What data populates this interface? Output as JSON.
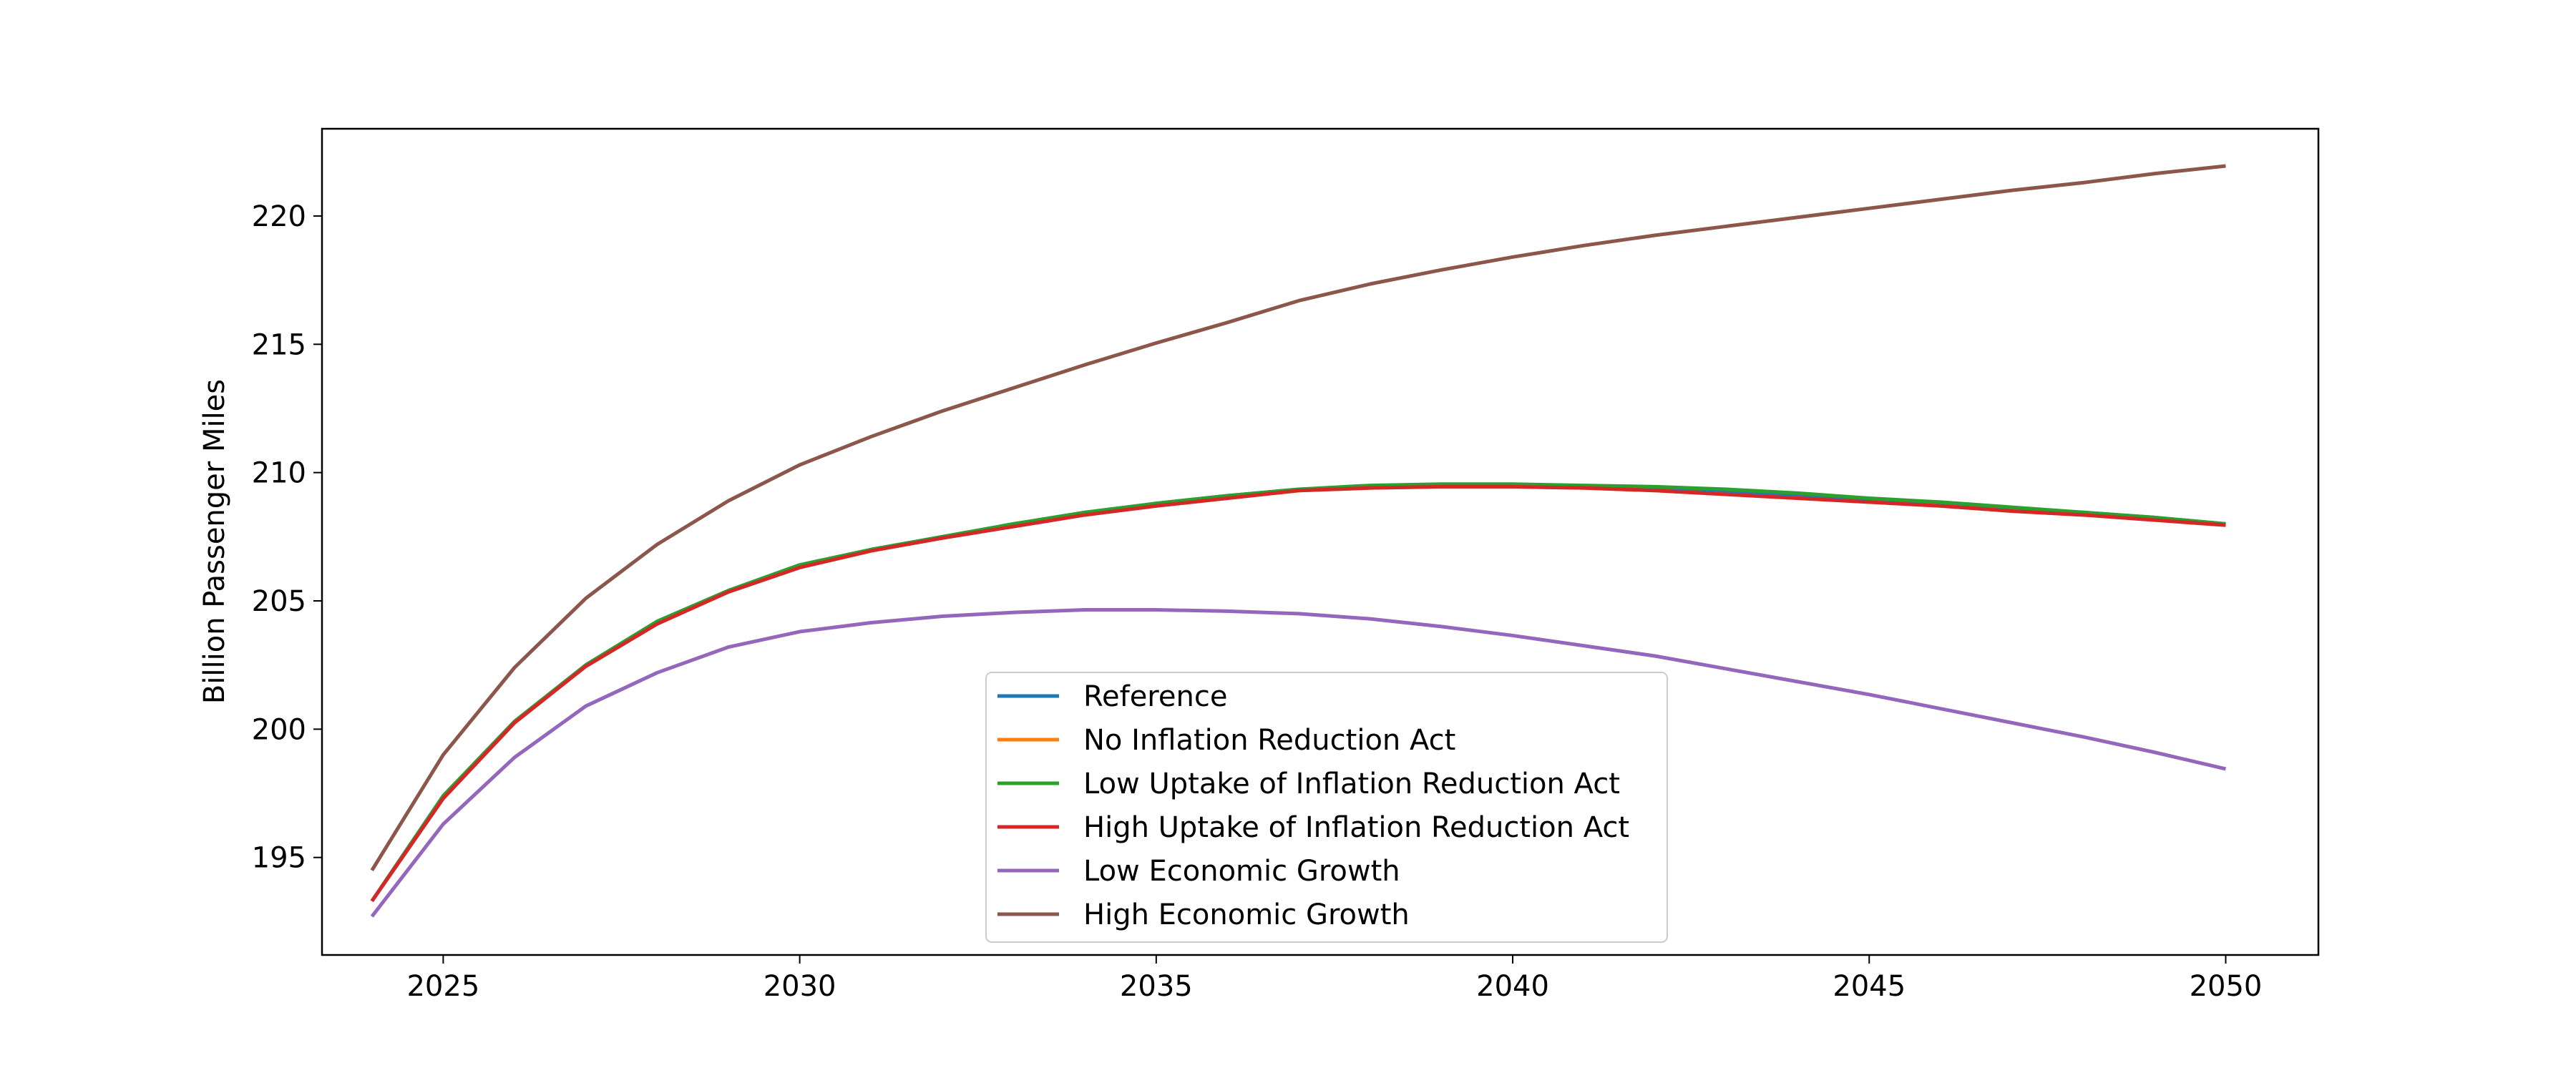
{
  "chart_data": {
    "type": "line",
    "title": "",
    "xlabel": "",
    "ylabel": "Billion Passenger Miles",
    "xlim": [
      2023.3,
      2051.3
    ],
    "ylim": [
      191.2,
      223.4
    ],
    "xticks": [
      2025,
      2030,
      2035,
      2040,
      2045,
      2050
    ],
    "yticks": [
      195,
      200,
      205,
      210,
      215,
      220
    ],
    "grid": false,
    "legend_position": "lower center",
    "x": [
      2024,
      2025,
      2026,
      2027,
      2028,
      2029,
      2030,
      2031,
      2032,
      2033,
      2034,
      2035,
      2036,
      2037,
      2038,
      2039,
      2040,
      2041,
      2042,
      2043,
      2044,
      2045,
      2046,
      2047,
      2048,
      2049,
      2050
    ],
    "series": [
      {
        "name": "Reference",
        "color": "#1f77b4",
        "values": [
          193.3,
          197.4,
          200.3,
          202.5,
          204.2,
          205.4,
          206.4,
          207.0,
          207.5,
          208.0,
          208.4,
          208.8,
          209.1,
          209.35,
          209.45,
          209.5,
          209.5,
          209.45,
          209.4,
          209.25,
          209.1,
          208.95,
          208.8,
          208.6,
          208.45,
          208.25,
          208.0
        ]
      },
      {
        "name": "No Inflation Reduction Act",
        "color": "#ff7f0e",
        "values": [
          193.3,
          197.3,
          200.25,
          202.45,
          204.1,
          205.35,
          206.3,
          206.95,
          207.45,
          207.9,
          208.35,
          208.7,
          209.0,
          209.3,
          209.4,
          209.45,
          209.45,
          209.4,
          209.3,
          209.15,
          209.0,
          208.85,
          208.7,
          208.5,
          208.35,
          208.15,
          207.95
        ]
      },
      {
        "name": "Low Uptake of Inflation Reduction Act",
        "color": "#2ca02c",
        "values": [
          193.3,
          197.4,
          200.3,
          202.5,
          204.2,
          205.4,
          206.4,
          207.0,
          207.5,
          208.0,
          208.45,
          208.8,
          209.1,
          209.35,
          209.5,
          209.55,
          209.55,
          209.5,
          209.45,
          209.35,
          209.2,
          209.0,
          208.85,
          208.65,
          208.45,
          208.25,
          208.0
        ]
      },
      {
        "name": "High Uptake of Inflation Reduction Act",
        "color": "#d62728",
        "values": [
          193.3,
          197.3,
          200.25,
          202.45,
          204.1,
          205.35,
          206.3,
          206.95,
          207.45,
          207.9,
          208.35,
          208.7,
          209.0,
          209.3,
          209.4,
          209.45,
          209.45,
          209.4,
          209.3,
          209.15,
          209.0,
          208.85,
          208.7,
          208.5,
          208.35,
          208.15,
          207.95
        ]
      },
      {
        "name": "Low Economic Growth",
        "color": "#9467bd",
        "values": [
          192.7,
          196.3,
          198.9,
          200.9,
          202.2,
          203.2,
          203.8,
          204.15,
          204.4,
          204.55,
          204.65,
          204.65,
          204.6,
          204.5,
          204.3,
          204.0,
          203.65,
          203.25,
          202.85,
          202.35,
          201.85,
          201.35,
          200.8,
          200.25,
          199.7,
          199.1,
          198.45
        ]
      },
      {
        "name": "High Economic Growth",
        "color": "#8c564b",
        "values": [
          194.5,
          199.0,
          202.4,
          205.1,
          207.2,
          208.9,
          210.3,
          211.4,
          212.4,
          213.3,
          214.2,
          215.05,
          215.85,
          216.7,
          217.35,
          217.9,
          218.4,
          218.85,
          219.25,
          219.6,
          219.95,
          220.3,
          220.65,
          221.0,
          221.3,
          221.65,
          221.95
        ]
      }
    ]
  }
}
